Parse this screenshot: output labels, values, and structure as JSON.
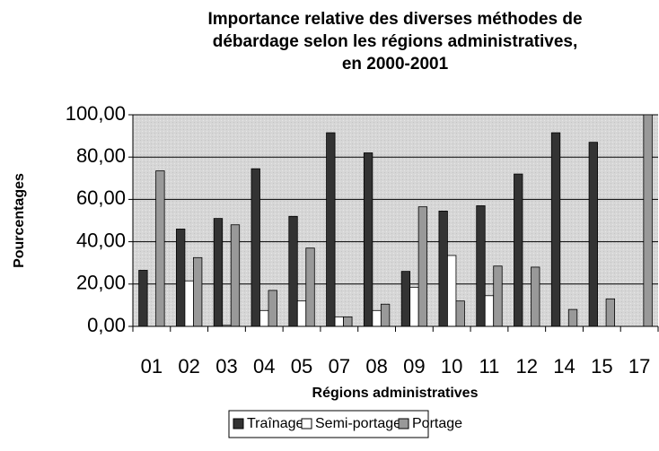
{
  "chart_data": {
    "type": "bar",
    "title": [
      "Importance relative des diverses méthodes de",
      "débardage selon les régions administratives,",
      "en 2000-2001"
    ],
    "x_label": "Régions administratives",
    "y_label": "Pourcentages",
    "categories": [
      "01",
      "02",
      "03",
      "04",
      "05",
      "07",
      "08",
      "09",
      "10",
      "11",
      "12",
      "14",
      "15",
      "17"
    ],
    "series": [
      {
        "name": "Traînage",
        "color": "#333333",
        "values": [
          26.5,
          46,
          51,
          74.5,
          52,
          91.5,
          82,
          26,
          54.5,
          57,
          72,
          91.5,
          87,
          0
        ]
      },
      {
        "name": "Semi-portage",
        "color": "#ffffff",
        "values": [
          0,
          21.5,
          0.5,
          7.5,
          12,
          4.5,
          7.5,
          18.5,
          33.5,
          14.5,
          0,
          0,
          0,
          0
        ]
      },
      {
        "name": "Portage",
        "color": "#999999",
        "values": [
          73.5,
          32.5,
          48,
          17,
          37,
          4.5,
          10.5,
          56.5,
          12,
          28.5,
          28,
          8,
          13,
          100
        ]
      }
    ],
    "ylim": [
      0,
      100
    ],
    "yticks": [
      {
        "value": 0,
        "label": "0,00"
      },
      {
        "value": 20,
        "label": "20,00"
      },
      {
        "value": 40,
        "label": "40,00"
      },
      {
        "value": 60,
        "label": "60,00"
      },
      {
        "value": 80,
        "label": "80,00"
      },
      {
        "value": 100,
        "label": "100,00"
      }
    ],
    "grid": true,
    "legend": "bottom"
  }
}
